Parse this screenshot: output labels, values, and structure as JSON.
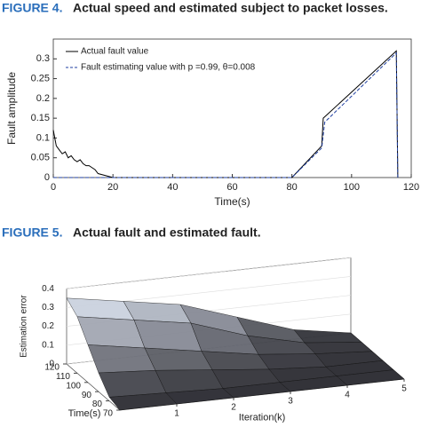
{
  "chart_data": [
    {
      "type": "line",
      "label": "FIGURE 4.",
      "title": "Actual speed and estimated subject to packet losses.",
      "xlabel": "Time(s)",
      "ylabel": "Fault amplitude",
      "xlim": [
        0,
        120
      ],
      "xticks": [
        0,
        20,
        40,
        60,
        80,
        100,
        120
      ],
      "ylim": [
        0,
        0.35
      ],
      "yticks": [
        0,
        0.05,
        0.1,
        0.15,
        0.2,
        0.25,
        0.3
      ],
      "legend": "upper left",
      "series": [
        {
          "name": "Actual fault value",
          "color": "#000000",
          "style": "solid",
          "x": [
            0,
            1,
            2,
            3,
            4,
            5,
            6,
            7,
            8,
            9,
            10,
            11,
            12,
            13,
            14,
            15,
            20,
            40,
            60,
            80,
            90,
            90.5,
            115,
            115.5
          ],
          "values": [
            0.12,
            0.08,
            0.07,
            0.06,
            0.065,
            0.05,
            0.055,
            0.045,
            0.04,
            0.045,
            0.035,
            0.03,
            0.03,
            0.025,
            0.02,
            0.01,
            0,
            0,
            0,
            0,
            0.08,
            0.15,
            0.32,
            0
          ]
        },
        {
          "name": "Fault estimating value with p =0.99, θ=0.008",
          "color": "#1f3fa0",
          "style": "dashed",
          "x": [
            0,
            20,
            40,
            60,
            80,
            90,
            91,
            115,
            115.5
          ],
          "values": [
            0,
            0,
            0,
            0,
            0,
            0.075,
            0.14,
            0.315,
            0
          ]
        }
      ]
    },
    {
      "type": "surface",
      "label": "FIGURE 5.",
      "title": "Actual fault and estimated fault.",
      "xlabel": "Iteration(k)",
      "ylabel": "Time(s)",
      "zlabel": "Estimation error",
      "xlim": [
        0,
        5
      ],
      "xticks": [
        1,
        2,
        3,
        4,
        5
      ],
      "ylim": [
        70,
        120
      ],
      "yticks": [
        70,
        80,
        90,
        100,
        110,
        120
      ],
      "zlim": [
        0,
        0.4
      ],
      "zticks": [
        0,
        0.1,
        0.2,
        0.3,
        0.4
      ],
      "x": [
        0,
        1,
        2,
        3,
        4,
        5
      ],
      "y": [
        120,
        110,
        100,
        90,
        80,
        70
      ],
      "z": [
        [
          0.35,
          0.3,
          0.25,
          0.15,
          0.05,
          0
        ],
        [
          0.3,
          0.25,
          0.2,
          0.1,
          0.03,
          0
        ],
        [
          0.2,
          0.15,
          0.1,
          0.05,
          0.02,
          0
        ],
        [
          0.1,
          0.08,
          0.05,
          0.02,
          0,
          0
        ],
        [
          0.02,
          0.01,
          0,
          0,
          0,
          0
        ],
        [
          0,
          0,
          0,
          0,
          0,
          0
        ]
      ]
    }
  ]
}
